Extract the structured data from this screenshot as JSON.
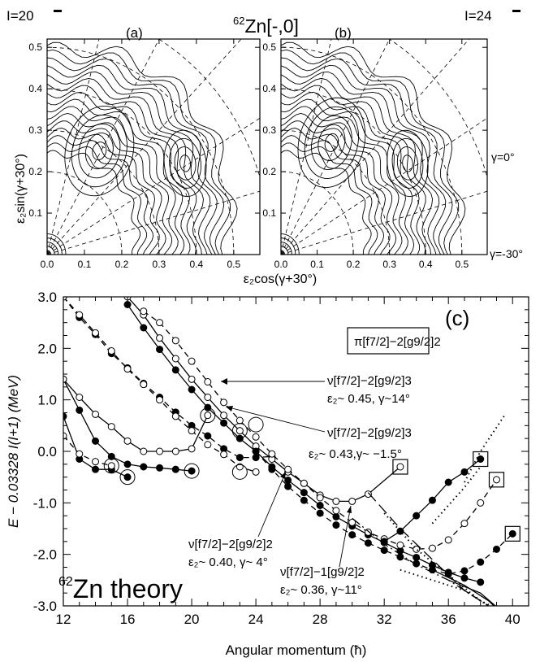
{
  "figure": {
    "title": "62Zn[-,0]",
    "title_mass": "62",
    "title_rest": "Zn[-,0]",
    "panel_a_spin": "I=20",
    "panel_b_spin": "I=24",
    "panel_a_label": "(a)",
    "panel_b_label": "(b)",
    "panel_c_label": "(c)",
    "gamma_0": "γ=0°",
    "gamma_m30": "γ=-30°",
    "contour_ylabel": "ε₂sin(γ+30°)",
    "contour_xlabel": "ε₂cos(γ+30°)",
    "theory_mass": "62",
    "theory_text": "Zn  theory",
    "legend_box": "π[f7/2]−2[g9/2]2"
  },
  "annotations": [
    {
      "line1": "ν[f7/2]−2[g9/2]3",
      "line2": "ε₂~ 0.45, γ~14°"
    },
    {
      "line1": "ν[f7/2]−2[g9/2]3",
      "line2": "ε₂~ 0.43,γ~ −1.5°"
    },
    {
      "line1": "ν[f7/2]−2[g9/2]2",
      "line2": "ε₂~ 0.40, γ~ 4°"
    },
    {
      "line1": "ν[f7/2]−1[g9/2]2",
      "line2": "ε₂~ 0.36, γ~11°"
    }
  ],
  "chart_data": [
    {
      "type": "heatmap",
      "panel": "(a)",
      "title": "I=20",
      "xlabel": "",
      "ylabel": "ε₂sin(γ+30°)",
      "xlim": [
        0.0,
        0.57
      ],
      "ylim": [
        0.0,
        0.52
      ],
      "x_ticks": [
        "0.0",
        "0.1",
        "0.2",
        "0.3",
        "0.4",
        "0.5"
      ],
      "y_ticks": [
        "0.1",
        "0.2",
        "0.3",
        "0.4",
        "0.5"
      ],
      "minima": [
        {
          "x": 0.14,
          "y": 0.25
        },
        {
          "x": 0.37,
          "y": 0.22
        }
      ]
    },
    {
      "type": "heatmap",
      "panel": "(b)",
      "title": "I=24",
      "xlabel": "ε₂cos(γ+30°)",
      "ylabel": "",
      "xlim": [
        0.0,
        0.57
      ],
      "ylim": [
        0.0,
        0.52
      ],
      "x_ticks": [
        "0.0",
        "0.1",
        "0.2",
        "0.3",
        "0.4",
        "0.5"
      ],
      "y_ticks": [
        "0.1",
        "0.2",
        "0.3",
        "0.4",
        "0.5"
      ],
      "minima": [
        {
          "x": 0.14,
          "y": 0.27
        },
        {
          "x": 0.35,
          "y": 0.22
        }
      ]
    },
    {
      "type": "line",
      "panel": "(c)",
      "xlabel": "Angular  momentum (ħ)",
      "ylabel": "E − 0.03328 I(I+1) (MeV)",
      "xlim": [
        12,
        41
      ],
      "ylim": [
        -3.0,
        3.0
      ],
      "x_ticks": [
        "12",
        "16",
        "20",
        "24",
        "28",
        "32",
        "36",
        "40"
      ],
      "y_ticks": [
        "3.0",
        "2.0",
        "1.0",
        "0.0",
        "-1.0",
        "-2.0",
        "-3.0"
      ],
      "series": [
        {
          "style": "solid",
          "marker": "filled",
          "points": [
            [
              12,
              0.68
            ],
            [
              13,
              -0.15
            ],
            [
              14,
              -0.35
            ],
            [
              15,
              -0.35
            ],
            [
              16,
              -0.5
            ]
          ]
        },
        {
          "style": "solid",
          "marker": "filled",
          "points": [
            [
              12,
              1.4
            ],
            [
              13,
              0.8
            ],
            [
              14,
              0.2
            ],
            [
              15,
              -0.1
            ],
            [
              16,
              -0.25
            ],
            [
              17,
              -0.3
            ],
            [
              18,
              -0.32
            ],
            [
              19,
              -0.35
            ],
            [
              20,
              -0.38
            ]
          ]
        },
        {
          "style": "dashed",
          "marker": "open",
          "points": [
            [
              12,
              0.3
            ],
            [
              13,
              -0.05
            ],
            [
              14,
              -0.2
            ],
            [
              15,
              -0.28
            ]
          ]
        },
        {
          "style": "solid",
          "marker": "open",
          "points": [
            [
              12,
              1.4
            ],
            [
              13,
              1.05
            ],
            [
              14,
              0.72
            ],
            [
              15,
              0.48
            ],
            [
              16,
              0.2
            ],
            [
              17,
              0.0
            ],
            [
              18,
              0.0
            ],
            [
              19,
              0.0
            ],
            [
              20,
              0.05
            ],
            [
              21,
              0.7
            ]
          ]
        },
        {
          "style": "dashed",
          "marker": "filled",
          "points": [
            [
              12,
              3.0
            ],
            [
              13,
              2.6
            ],
            [
              14,
              2.27
            ],
            [
              15,
              1.9
            ],
            [
              16,
              1.62
            ],
            [
              17,
              1.32
            ],
            [
              18,
              1.05
            ],
            [
              19,
              0.76
            ],
            [
              20,
              0.5
            ],
            [
              21,
              0.3
            ],
            [
              22,
              0.05
            ],
            [
              23,
              -0.12
            ],
            [
              24,
              -0.12
            ],
            [
              25,
              -0.1
            ]
          ]
        },
        {
          "style": "dashed",
          "marker": "open",
          "points": [
            [
              12,
              3.0
            ],
            [
              13,
              2.65
            ],
            [
              14,
              2.3
            ],
            [
              15,
              1.95
            ],
            [
              16,
              1.6
            ],
            [
              17,
              1.3
            ],
            [
              18,
              1.0
            ],
            [
              19,
              0.68
            ],
            [
              20,
              0.4
            ],
            [
              21,
              0.13
            ],
            [
              22,
              -0.06
            ],
            [
              23,
              -0.3
            ],
            [
              24,
              -0.4
            ]
          ]
        },
        {
          "style": "solid",
          "marker": "filled",
          "points": [
            [
              16,
              2.85
            ],
            [
              17,
              2.4
            ],
            [
              18,
              1.98
            ],
            [
              19,
              1.58
            ],
            [
              20,
              1.2
            ],
            [
              21,
              0.85
            ],
            [
              22,
              0.55
            ],
            [
              23,
              0.25
            ],
            [
              24,
              0.0
            ],
            [
              25,
              -0.3
            ],
            [
              26,
              -0.56
            ],
            [
              27,
              -0.8
            ],
            [
              28,
              -1.05
            ],
            [
              29,
              -1.27
            ],
            [
              30,
              -1.45
            ],
            [
              31,
              -1.62
            ],
            [
              32,
              -1.77
            ],
            [
              33,
              -1.93
            ],
            [
              34,
              -2.06
            ],
            [
              35,
              -2.21
            ],
            [
              36,
              -2.35
            ],
            [
              37,
              -2.46
            ],
            [
              38,
              -2.54
            ]
          ]
        },
        {
          "style": "solid",
          "marker": "open",
          "points": [
            [
              16,
              3.0
            ],
            [
              17,
              2.65
            ],
            [
              18,
              2.2
            ],
            [
              19,
              1.8
            ],
            [
              20,
              1.4
            ],
            [
              21,
              1.05
            ],
            [
              22,
              0.7
            ],
            [
              23,
              0.4
            ],
            [
              24,
              0.1
            ],
            [
              25,
              -0.15
            ],
            [
              26,
              -0.4
            ],
            [
              27,
              -0.62
            ],
            [
              28,
              -0.85
            ],
            [
              29,
              -0.97
            ],
            [
              30,
              -0.97
            ],
            [
              31,
              -0.83
            ],
            [
              33,
              -0.3
            ]
          ]
        },
        {
          "style": "dashed",
          "marker": "open",
          "points": [
            [
              17,
              2.72
            ],
            [
              18,
              2.5
            ],
            [
              19,
              2.15
            ],
            [
              20,
              1.75
            ],
            [
              21,
              1.35
            ],
            [
              22,
              0.95
            ],
            [
              23,
              0.6
            ],
            [
              24,
              0.28
            ],
            [
              25,
              -0.05
            ],
            [
              26,
              -0.35
            ],
            [
              27,
              -0.62
            ],
            [
              28,
              -0.9
            ],
            [
              29,
              -1.15
            ],
            [
              30,
              -1.38
            ],
            [
              31,
              -1.57
            ],
            [
              32,
              -1.7
            ],
            [
              33,
              -1.82
            ],
            [
              34,
              -1.9
            ],
            [
              35,
              -1.88
            ],
            [
              36,
              -1.72
            ],
            [
              37,
              -1.4
            ],
            [
              38,
              -1.0
            ],
            [
              39,
              -0.55
            ]
          ]
        },
        {
          "style": "dashed",
          "marker": "filled",
          "points": [
            [
              24,
              0.0
            ],
            [
              25,
              -0.35
            ],
            [
              26,
              -0.68
            ],
            [
              27,
              -0.95
            ],
            [
              28,
              -1.2
            ],
            [
              29,
              -1.43
            ],
            [
              30,
              -1.62
            ],
            [
              31,
              -1.78
            ],
            [
              32,
              -1.92
            ],
            [
              33,
              -2.05
            ],
            [
              34,
              -2.18
            ],
            [
              35,
              -2.3
            ],
            [
              36,
              -2.38
            ],
            [
              37,
              -2.32
            ],
            [
              38,
              -2.15
            ],
            [
              39,
              -1.9
            ],
            [
              40,
              -1.6
            ]
          ]
        },
        {
          "style": "solid",
          "marker": "filled",
          "points": [
            [
              32,
              -1.75
            ],
            [
              33,
              -1.55
            ],
            [
              34,
              -1.25
            ],
            [
              35,
              -0.95
            ],
            [
              36,
              -0.6
            ],
            [
              37,
              -0.4
            ],
            [
              38,
              -0.15
            ]
          ]
        }
      ],
      "circled_points": [
        [
          15,
          -0.28
        ],
        [
          16,
          -0.5
        ],
        [
          20,
          -0.38
        ],
        [
          21,
          0.7
        ],
        [
          23,
          0.4
        ],
        [
          23,
          -0.4
        ],
        [
          24,
          0.52
        ]
      ],
      "boxed_points": [
        [
          33,
          -0.3
        ],
        [
          38,
          -0.15
        ],
        [
          39,
          -0.55
        ],
        [
          40,
          -1.6
        ]
      ]
    }
  ]
}
